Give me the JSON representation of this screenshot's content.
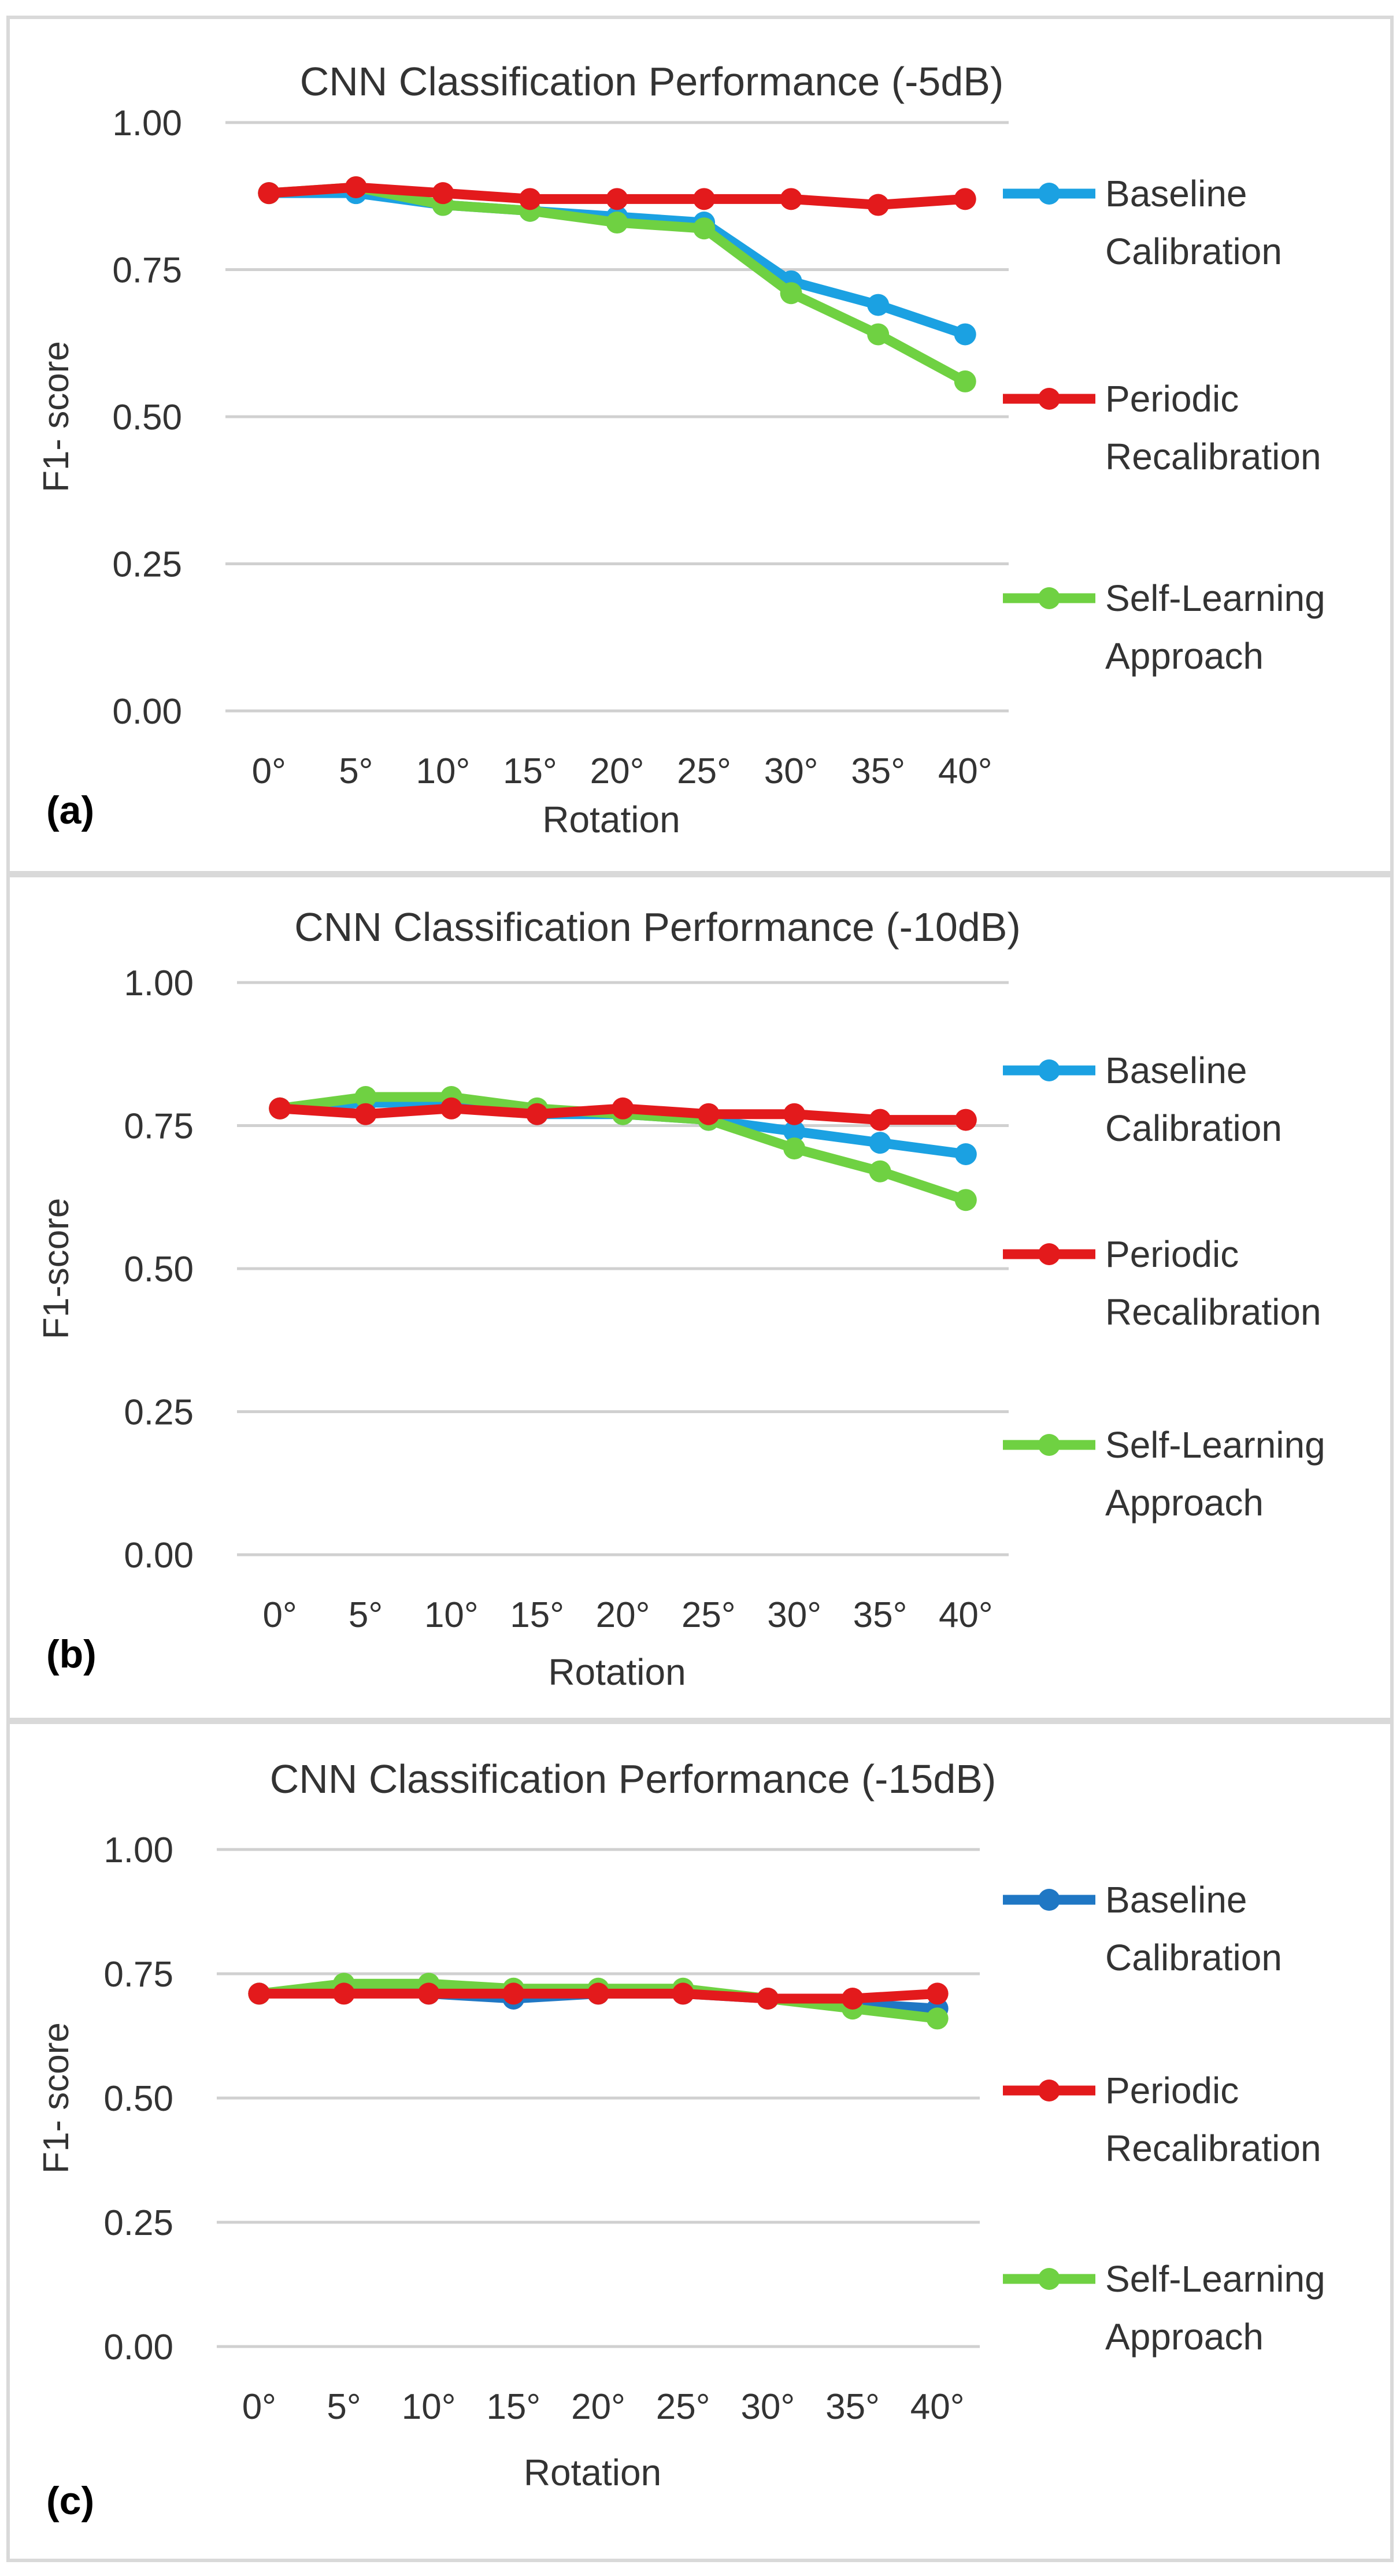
{
  "panels": [
    {
      "label": "(a)",
      "colors": {
        "baseline": "#1ba1e2",
        "periodic": "#e31a1c",
        "self": "#6fd142"
      },
      "chart_data": {
        "type": "line",
        "title": "CNN Classification Performance (-5dB)",
        "xlabel": "Rotation",
        "ylabel": "F1- score",
        "categories": [
          "0°",
          "5°",
          "10°",
          "15°",
          "20°",
          "25°",
          "30°",
          "35°",
          "40°"
        ],
        "ylim": [
          0,
          1
        ],
        "yticks": [
          "0.00",
          "0.25",
          "0.50",
          "0.75",
          "1.00"
        ],
        "grid": true,
        "legend_position": "right",
        "series": [
          {
            "key": "baseline",
            "name": "Baseline Calibration",
            "legend_lines": [
              "Baseline",
              "Calibration"
            ],
            "values": [
              0.88,
              0.88,
              0.86,
              0.85,
              0.84,
              0.83,
              0.73,
              0.69,
              0.64
            ]
          },
          {
            "key": "periodic",
            "name": "Periodic Recalibration",
            "legend_lines": [
              "Periodic",
              "Recalibration"
            ],
            "values": [
              0.88,
              0.89,
              0.88,
              0.87,
              0.87,
              0.87,
              0.87,
              0.86,
              0.87
            ]
          },
          {
            "key": "self",
            "name": "Self-Learning Approach",
            "legend_lines": [
              "Self-Learning",
              "Approach"
            ],
            "values": [
              0.88,
              0.89,
              0.86,
              0.85,
              0.83,
              0.82,
              0.71,
              0.64,
              0.56
            ]
          }
        ]
      }
    },
    {
      "label": "(b)",
      "colors": {
        "baseline": "#1ba1e2",
        "periodic": "#e31a1c",
        "self": "#6fd142"
      },
      "chart_data": {
        "type": "line",
        "title": "CNN Classification Performance (-10dB)",
        "xlabel": "Rotation",
        "ylabel": "F1-score",
        "categories": [
          "0°",
          "5°",
          "10°",
          "15°",
          "20°",
          "25°",
          "30°",
          "35°",
          "40°"
        ],
        "ylim": [
          0,
          1
        ],
        "yticks": [
          "0.00",
          "0.25",
          "0.50",
          "0.75",
          "1.00"
        ],
        "grid": true,
        "legend_position": "right",
        "series": [
          {
            "key": "baseline",
            "name": "Baseline Calibration",
            "legend_lines": [
              "Baseline",
              "Calibration"
            ],
            "values": [
              0.78,
              0.79,
              0.79,
              0.77,
              0.77,
              0.76,
              0.74,
              0.72,
              0.7
            ]
          },
          {
            "key": "periodic",
            "name": "Periodic Recalibration",
            "legend_lines": [
              "Periodic",
              "Recalibration"
            ],
            "values": [
              0.78,
              0.77,
              0.78,
              0.77,
              0.78,
              0.77,
              0.77,
              0.76,
              0.76
            ]
          },
          {
            "key": "self",
            "name": "Self-Learning Approach",
            "legend_lines": [
              "Self-Learning",
              "Approach"
            ],
            "values": [
              0.78,
              0.8,
              0.8,
              0.78,
              0.77,
              0.76,
              0.71,
              0.67,
              0.62
            ]
          }
        ]
      }
    },
    {
      "label": "(c)",
      "colors": {
        "baseline": "#1f77c4",
        "periodic": "#e31a1c",
        "self": "#6fd142"
      },
      "chart_data": {
        "type": "line",
        "title": "CNN Classification Performance (-15dB)",
        "xlabel": "Rotation",
        "ylabel": "F1- score",
        "categories": [
          "0°",
          "5°",
          "10°",
          "15°",
          "20°",
          "25°",
          "30°",
          "35°",
          "40°"
        ],
        "ylim": [
          0,
          1
        ],
        "yticks": [
          "0.00",
          "0.25",
          "0.50",
          "0.75",
          "1.00"
        ],
        "grid": true,
        "legend_position": "right",
        "series": [
          {
            "key": "baseline",
            "name": "Baseline Calibration",
            "legend_lines": [
              "Baseline",
              "Calibration"
            ],
            "values": [
              0.71,
              0.72,
              0.71,
              0.7,
              0.71,
              0.71,
              0.7,
              0.69,
              0.68
            ]
          },
          {
            "key": "periodic",
            "name": "Periodic Recalibration",
            "legend_lines": [
              "Periodic",
              "Recalibration"
            ],
            "values": [
              0.71,
              0.71,
              0.71,
              0.71,
              0.71,
              0.71,
              0.7,
              0.7,
              0.71
            ]
          },
          {
            "key": "self",
            "name": "Self-Learning Approach",
            "legend_lines": [
              "Self-Learning",
              "Approach"
            ],
            "values": [
              0.71,
              0.73,
              0.73,
              0.72,
              0.72,
              0.72,
              0.7,
              0.68,
              0.66
            ]
          }
        ]
      }
    }
  ]
}
